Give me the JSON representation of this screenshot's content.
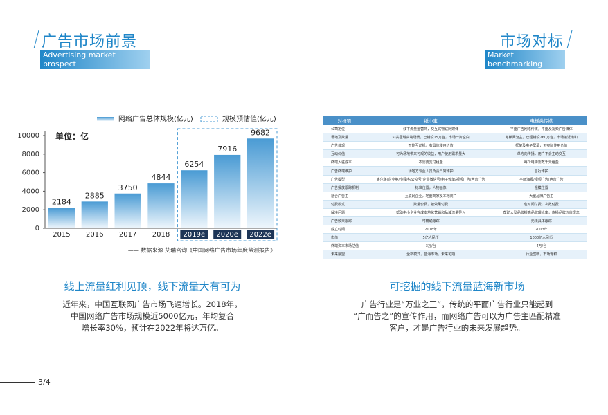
{
  "left_header": {
    "title": "广告市场前景",
    "subtitle": "Advertising market prospect"
  },
  "right_header": {
    "title": "市场对标",
    "subtitle": "Market benchmarking"
  },
  "chart_data": {
    "type": "bar",
    "unit_label": "单位：亿",
    "source": "—— 数据来源 艾瑞咨询《中国网络广告市场年度监测报告》",
    "categories": [
      "2015",
      "2016",
      "2017",
      "2018",
      "2019e",
      "2020e",
      "2022e"
    ],
    "series": [
      {
        "name": "网络广告总体规模(亿元)",
        "color": "#4a9bd4",
        "values": [
          2184,
          2885,
          3750,
          4844,
          null,
          null,
          null
        ]
      },
      {
        "name": "规模预估值(亿元)",
        "color": "#4a9bd4",
        "values": [
          null,
          null,
          null,
          null,
          6254,
          7916,
          9682
        ]
      }
    ],
    "ylim": [
      0,
      10000
    ],
    "yticks": [
      0,
      2000,
      4000,
      6000,
      8000,
      10000
    ]
  },
  "table": {
    "header": [
      "对标项",
      "纸巾宝",
      "电梯类传媒"
    ],
    "rows": [
      [
        "公司定位",
        "线下流量运营商，交互式物联网媒体",
        "平面广告网络传媒，平面及视频广告媒体"
      ],
      [
        "场地及数量",
        "公共区域高端场景，已铺设15万台，市场一片空白",
        "电梯间为主，已经铺设260万台，市场接近饱和"
      ],
      [
        "广告体现",
        "智能互动机，有具体使用价值",
        "框架及电子屏幕，无实际使用价值"
      ],
      [
        "互动价值",
        "可为场地带来可观的收益，用户使用需求量大",
        "单方向传播，用户不会主动交互"
      ],
      [
        "终端入驻成本",
        "不需要支付租金",
        "每个电梯需数千元租金"
      ],
      [
        "广告终端维护",
        "场地方专业人员负责日常维护",
        "自行维护"
      ],
      [
        "广告模型",
        "奥尔英/企业英/小程序/公众号/企业微信号/电子传单/视频广告/声音广告",
        "平面海报/视频广告/声音广告"
      ],
      [
        "广告投放跟踪机制",
        "标准位置，人物画像",
        "粗模位置"
      ],
      [
        "适合广告主",
        "互联网企业，地面商家及本地商户",
        "大型品牌广告主"
      ],
      [
        "付费模式",
        "数量价费，按效果付费",
        "包时间付费，次数付费"
      ],
      [
        "解决问题",
        "帮助中小企业完成本地化营销和私域流量导入",
        "帮助大型品牌提高品牌曝光率，传播品牌价值理念"
      ],
      [
        "广告效果跟踪",
        "可精确跟踪",
        "无法具体跟踪"
      ],
      [
        "成立时间",
        "2018年",
        "2003年"
      ],
      [
        "市值",
        "5亿人民币",
        "1000亿人民币"
      ],
      [
        "终端资本市场估值",
        "3万/台",
        "4万/台"
      ],
      [
        "未来展望",
        "全新模式，蓝海市场，未来可期",
        "行业垄断，市场饱和"
      ]
    ]
  },
  "left_text": {
    "heading": "线上流量红利见顶，线下流量大有可为",
    "lines": [
      "近年来，中国互联网广告市场飞速增长。2018年，",
      "中国网络广告市场规模近5000亿元，年均复合",
      "增长率30%，预计在2022年将达万亿。"
    ]
  },
  "right_text": {
    "heading": "可挖掘的线下流量蓝海新市场",
    "lines": [
      "广告行业是“万业之王”，传统的平面广告行业只能起到",
      "“广而告之”的宣传作用，而网络广告可以为广告主匹配精准",
      "客户，才是广告行业的未来发展趋势。"
    ]
  },
  "page_number": "3/4"
}
